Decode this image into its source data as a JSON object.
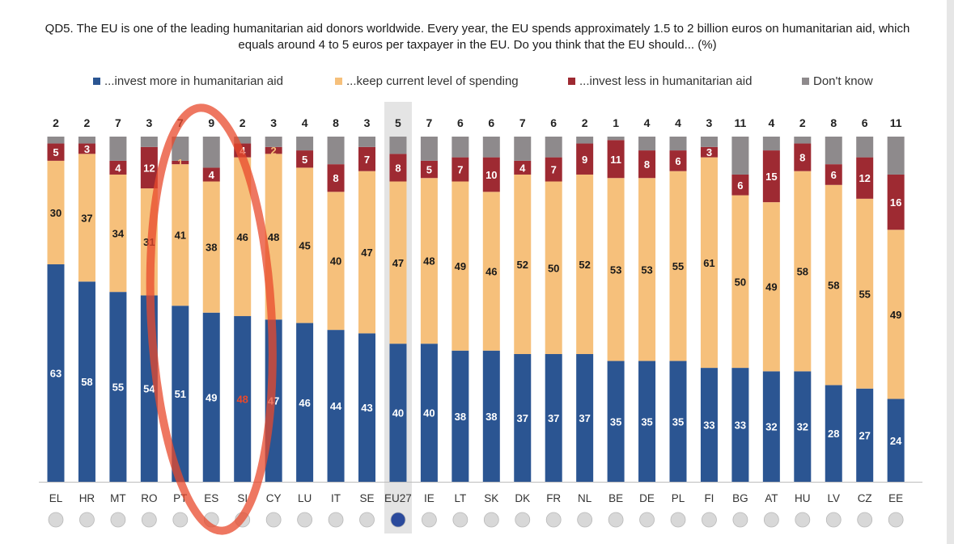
{
  "title": "QD5. The EU is one of the leading humanitarian aid donors worldwide. Every year, the EU spends approximately 1.5 to 2 billion euros on humanitarian aid, which equals around 4 to 5 euros per taxpayer in the EU. Do you think that the EU should... (%)",
  "colors": {
    "more": "#2b5592",
    "keep": "#f6c07b",
    "less": "#9e2a32",
    "dk": "#8e8a8c",
    "highlight": "#e8492c",
    "eu_bg": "#e4e4e4"
  },
  "chart_data": {
    "type": "bar",
    "stacked": true,
    "orientation": "vertical",
    "title": "QD5. The EU is one of the leading humanitarian aid donors worldwide. Every year, the EU spends approximately 1.5 to 2 billion euros on humanitarian aid, which equals around 4 to 5 euros per taxpayer in the EU. Do you think that the EU should... (%)",
    "unit": "%",
    "ylim": [
      0,
      100
    ],
    "categories": [
      "EL",
      "HR",
      "MT",
      "RO",
      "PT",
      "ES",
      "SI",
      "CY",
      "LU",
      "IT",
      "SE",
      "EU27",
      "IE",
      "LT",
      "SK",
      "DK",
      "FR",
      "NL",
      "BE",
      "DE",
      "PL",
      "FI",
      "BG",
      "AT",
      "HU",
      "LV",
      "CZ",
      "EE"
    ],
    "series": [
      {
        "key": "more",
        "name": "...invest more in humanitarian aid",
        "values": [
          63,
          58,
          55,
          54,
          51,
          49,
          48,
          47,
          46,
          44,
          43,
          40,
          40,
          38,
          38,
          37,
          37,
          37,
          35,
          35,
          35,
          33,
          33,
          32,
          32,
          28,
          27,
          24
        ]
      },
      {
        "key": "keep",
        "name": "...keep current level of spending",
        "values": [
          30,
          37,
          34,
          31,
          41,
          38,
          46,
          48,
          45,
          40,
          47,
          47,
          48,
          49,
          46,
          52,
          50,
          52,
          53,
          53,
          55,
          61,
          50,
          49,
          58,
          58,
          55,
          49
        ]
      },
      {
        "key": "less",
        "name": "...invest less in humanitarian aid",
        "values": [
          5,
          3,
          4,
          12,
          1,
          4,
          4,
          2,
          5,
          8,
          7,
          8,
          5,
          7,
          10,
          4,
          7,
          9,
          11,
          8,
          6,
          3,
          6,
          15,
          8,
          6,
          12,
          16
        ]
      },
      {
        "key": "dk",
        "name": "Don't know",
        "values": [
          2,
          2,
          7,
          3,
          7,
          9,
          2,
          3,
          4,
          8,
          3,
          5,
          7,
          6,
          6,
          7,
          6,
          2,
          1,
          4,
          4,
          3,
          11,
          4,
          2,
          8,
          6,
          11
        ]
      }
    ],
    "highlighted_categories": [
      "PT",
      "ES",
      "SI"
    ],
    "reference_category": "EU27"
  }
}
